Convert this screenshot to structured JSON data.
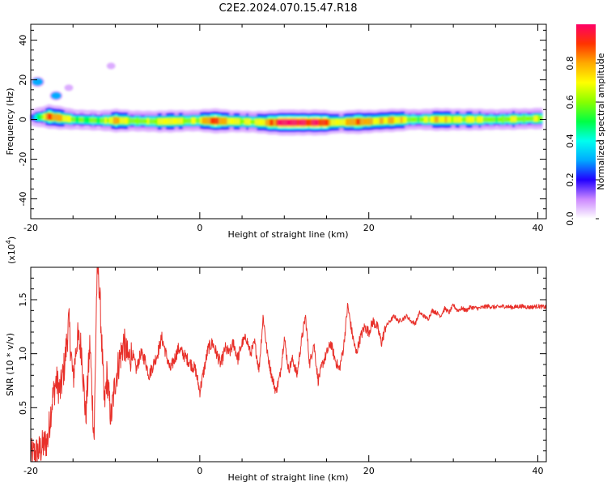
{
  "title": "C2E2.2024.070.15.47.R18",
  "colors": {
    "snr_line": "#e8302a",
    "frame": "#000000"
  },
  "chart_data": [
    {
      "type": "heatmap",
      "xlabel": "Height of straight line (km)",
      "ylabel": "Frequency (Hz)",
      "xlim": [
        -20,
        41
      ],
      "ylim": [
        -50,
        48
      ],
      "xticks": [
        -20,
        0,
        20,
        40
      ],
      "yticks": [
        40,
        20,
        0,
        -20,
        -40
      ],
      "colorbar": {
        "label": "Normalized spectral amplitude",
        "range": [
          0,
          1
        ],
        "ticks": [
          "0.0",
          "0.2",
          "0.4",
          "0.6",
          "0.8"
        ],
        "palette": [
          "#ffffff",
          "#cc88ff",
          "#2200ff",
          "#00aaff",
          "#00ffee",
          "#00ff44",
          "#88ff00",
          "#ffff00",
          "#ffaa00",
          "#ff3300",
          "#ff0066"
        ]
      },
      "band": {
        "center_hz": [
          [
            -20,
            1
          ],
          [
            -18,
            1.5
          ],
          [
            -15,
            0
          ],
          [
            -12,
            -0.5
          ],
          [
            -10,
            -0.5
          ],
          [
            -5,
            -1
          ],
          [
            0,
            -0.5
          ],
          [
            5,
            -1
          ],
          [
            8,
            -1.5
          ],
          [
            10,
            -1.5
          ],
          [
            12,
            -1.5
          ],
          [
            15,
            -1.5
          ],
          [
            20,
            -1
          ],
          [
            22,
            -0.5
          ],
          [
            25,
            0
          ],
          [
            30,
            0
          ],
          [
            35,
            0
          ],
          [
            40,
            0.5
          ]
        ],
        "peak_amplitude": [
          [
            -20,
            0.3
          ],
          [
            -18,
            0.85
          ],
          [
            -15,
            0.6
          ],
          [
            -12,
            0.5
          ],
          [
            -10,
            0.85
          ],
          [
            -8,
            0.55
          ],
          [
            -5,
            0.7
          ],
          [
            -2,
            0.65
          ],
          [
            0,
            0.7
          ],
          [
            2,
            0.9
          ],
          [
            4,
            0.7
          ],
          [
            6,
            0.6
          ],
          [
            8,
            0.85
          ],
          [
            10,
            0.98
          ],
          [
            12,
            1.0
          ],
          [
            14,
            0.95
          ],
          [
            16,
            0.7
          ],
          [
            18,
            0.85
          ],
          [
            20,
            0.75
          ],
          [
            22,
            0.8
          ],
          [
            25,
            0.6
          ],
          [
            28,
            0.7
          ],
          [
            30,
            0.72
          ],
          [
            33,
            0.62
          ],
          [
            35,
            0.62
          ],
          [
            38,
            0.6
          ],
          [
            40,
            0.68
          ]
        ]
      },
      "blobs": [
        {
          "x": -19.2,
          "y": 19,
          "amplitude": 0.3
        },
        {
          "x": -17.0,
          "y": 12,
          "amplitude": 0.25
        },
        {
          "x": -10.5,
          "y": 27,
          "amplitude": 0.05
        },
        {
          "x": -15.5,
          "y": 16,
          "amplitude": 0.05
        }
      ]
    },
    {
      "type": "line",
      "xlabel": "Height of straight line (km)",
      "ylabel": "SNR (10 * v/v)",
      "multiplier": "(x10^4)",
      "multiplier_base": "(x10",
      "multiplier_exp": "4",
      "xlim": [
        -20,
        41
      ],
      "ylim": [
        0,
        1.8
      ],
      "xticks": [
        -20,
        0,
        20,
        40
      ],
      "yticks": [
        1.5,
        1.0,
        0.5
      ],
      "yticklabels": [
        "1.5",
        "1.0",
        "0.5"
      ],
      "series": [
        {
          "envelope": [
            [
              -20,
              0.05
            ],
            [
              -19,
              0.1
            ],
            [
              -18,
              0.2
            ],
            [
              -17.5,
              0.55
            ],
            [
              -17,
              0.75
            ],
            [
              -16.5,
              0.65
            ],
            [
              -16,
              0.9
            ],
            [
              -15.5,
              1.3
            ],
            [
              -15,
              0.75
            ],
            [
              -14.5,
              1.15
            ],
            [
              -14,
              1.05
            ],
            [
              -13.5,
              0.4
            ],
            [
              -13,
              1.1
            ],
            [
              -12.5,
              0.2
            ],
            [
              -12.2,
              1.6
            ],
            [
              -12,
              1.8
            ],
            [
              -11.7,
              1.3
            ],
            [
              -11.3,
              0.5
            ],
            [
              -11,
              0.8
            ],
            [
              -10.5,
              0.4
            ],
            [
              -10,
              0.75
            ],
            [
              -9.5,
              0.95
            ],
            [
              -9,
              1.1
            ],
            [
              -8.5,
              0.95
            ],
            [
              -8,
              1.0
            ],
            [
              -7.5,
              0.85
            ],
            [
              -7,
              1.0
            ],
            [
              -6.5,
              0.95
            ],
            [
              -6,
              0.8
            ],
            [
              -5.5,
              0.9
            ],
            [
              -5,
              1.0
            ],
            [
              -4.5,
              1.15
            ],
            [
              -4,
              1.0
            ],
            [
              -3.5,
              0.85
            ],
            [
              -3,
              0.95
            ],
            [
              -2.5,
              1.05
            ],
            [
              -2,
              1.0
            ],
            [
              -1.5,
              0.95
            ],
            [
              -1,
              0.9
            ],
            [
              -0.5,
              0.85
            ],
            [
              0,
              0.65
            ],
            [
              0.5,
              0.85
            ],
            [
              1,
              1.05
            ],
            [
              1.5,
              1.1
            ],
            [
              2,
              1.0
            ],
            [
              2.5,
              0.9
            ],
            [
              3,
              1.05
            ],
            [
              3.5,
              1.0
            ],
            [
              4,
              1.1
            ],
            [
              4.5,
              0.95
            ],
            [
              5,
              1.1
            ],
            [
              5.5,
              1.15
            ],
            [
              6,
              1.0
            ],
            [
              6.5,
              1.1
            ],
            [
              7,
              0.85
            ],
            [
              7.5,
              1.35
            ],
            [
              8,
              1.0
            ],
            [
              8.5,
              0.8
            ],
            [
              9,
              0.65
            ],
            [
              9.5,
              0.8
            ],
            [
              10,
              1.15
            ],
            [
              10.5,
              0.85
            ],
            [
              11,
              0.95
            ],
            [
              11.5,
              0.8
            ],
            [
              12,
              1.1
            ],
            [
              12.5,
              1.35
            ],
            [
              13,
              0.9
            ],
            [
              13.5,
              1.1
            ],
            [
              14,
              0.75
            ],
            [
              14.5,
              0.9
            ],
            [
              15,
              1.0
            ],
            [
              15.5,
              1.1
            ],
            [
              16,
              0.95
            ],
            [
              16.5,
              0.85
            ],
            [
              17,
              1.05
            ],
            [
              17.5,
              1.45
            ],
            [
              18,
              1.2
            ],
            [
              18.5,
              1.0
            ],
            [
              19,
              1.15
            ],
            [
              19.5,
              1.25
            ],
            [
              20,
              1.2
            ],
            [
              20.5,
              1.3
            ],
            [
              21,
              1.25
            ],
            [
              21.5,
              1.1
            ],
            [
              22,
              1.25
            ],
            [
              22.5,
              1.3
            ],
            [
              23,
              1.35
            ],
            [
              23.5,
              1.3
            ],
            [
              24,
              1.32
            ],
            [
              24.5,
              1.35
            ],
            [
              25,
              1.3
            ],
            [
              25.5,
              1.28
            ],
            [
              26,
              1.38
            ],
            [
              26.5,
              1.35
            ],
            [
              27,
              1.32
            ],
            [
              27.5,
              1.4
            ],
            [
              28,
              1.38
            ],
            [
              28.5,
              1.35
            ],
            [
              29,
              1.42
            ],
            [
              29.5,
              1.38
            ],
            [
              30,
              1.45
            ],
            [
              30.5,
              1.4
            ],
            [
              31,
              1.42
            ],
            [
              31.5,
              1.4
            ],
            [
              32,
              1.43
            ],
            [
              33,
              1.42
            ],
            [
              34,
              1.44
            ],
            [
              35,
              1.43
            ],
            [
              36,
              1.44
            ],
            [
              37,
              1.43
            ],
            [
              38,
              1.44
            ],
            [
              39,
              1.43
            ],
            [
              40,
              1.44
            ],
            [
              41,
              1.43
            ]
          ]
        }
      ]
    }
  ]
}
